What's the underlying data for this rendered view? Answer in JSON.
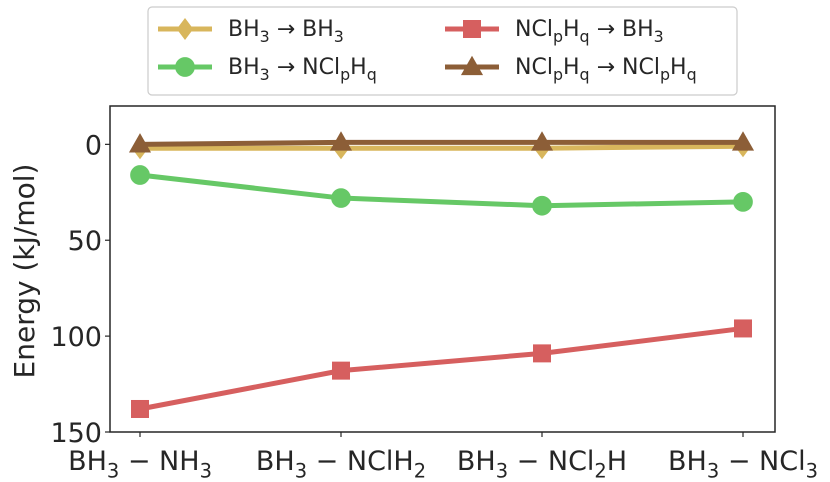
{
  "chart_data": {
    "type": "line",
    "title": "",
    "xlabel": "",
    "ylabel": "Energy (kJ/mol)",
    "ylim": [
      0,
      150
    ],
    "yticks": [
      0,
      50,
      100,
      150
    ],
    "y_inverted": true,
    "grid": false,
    "legend_position": "top-center",
    "categories": [
      {
        "base": "BH",
        "segments": [
          [
            "3",
            "sub"
          ],
          [
            " − NH",
            ""
          ],
          [
            "3",
            "sub"
          ]
        ]
      },
      {
        "base": "BH",
        "segments": [
          [
            "3",
            "sub"
          ],
          [
            " − NClH",
            ""
          ],
          [
            "2",
            "sub"
          ]
        ]
      },
      {
        "base": "BH",
        "segments": [
          [
            "3",
            "sub"
          ],
          [
            " − NCl",
            ""
          ],
          [
            "2",
            "sub"
          ],
          [
            "H",
            ""
          ]
        ]
      },
      {
        "base": "BH",
        "segments": [
          [
            "3",
            "sub"
          ],
          [
            " − NCl",
            ""
          ],
          [
            "3",
            "sub"
          ]
        ]
      }
    ],
    "category_text": [
      "BH3 − NH3",
      "BH3 − NClH2",
      "BH3 − NCl2H",
      "BH3 − NCl3"
    ],
    "series": [
      {
        "name": "BH3 → BH3",
        "label_parts": [
          [
            "BH",
            ""
          ],
          [
            "3",
            "sub"
          ],
          [
            " → BH",
            ""
          ],
          [
            "3",
            "sub"
          ]
        ],
        "marker": "diamond",
        "color": "#d8b65c",
        "values": [
          2,
          2,
          2,
          1
        ]
      },
      {
        "name": "BH3 → NClpHq",
        "label_parts": [
          [
            "BH",
            ""
          ],
          [
            "3",
            "sub"
          ],
          [
            " → NCl",
            ""
          ],
          [
            "p",
            "sub"
          ],
          [
            "H",
            ""
          ],
          [
            "q",
            "sub"
          ]
        ],
        "marker": "circle",
        "color": "#66c866",
        "values": [
          16,
          28,
          32,
          30
        ]
      },
      {
        "name": "NClpHq → BH3",
        "label_parts": [
          [
            "NCl",
            ""
          ],
          [
            "p",
            "sub"
          ],
          [
            "H",
            ""
          ],
          [
            "q",
            "sub"
          ],
          [
            " → BH",
            ""
          ],
          [
            "3",
            "sub"
          ]
        ],
        "marker": "square",
        "color": "#d65f5f",
        "values": [
          138,
          118,
          109,
          96
        ]
      },
      {
        "name": "NClpHq → NClpHq",
        "label_parts": [
          [
            "NCl",
            ""
          ],
          [
            "p",
            "sub"
          ],
          [
            "H",
            ""
          ],
          [
            "q",
            "sub"
          ],
          [
            " → NCl",
            ""
          ],
          [
            "p",
            "sub"
          ],
          [
            "H",
            ""
          ],
          [
            "q",
            "sub"
          ]
        ],
        "marker": "triangle",
        "color": "#8c5e37",
        "values": [
          0,
          -1,
          -1,
          -1
        ]
      }
    ]
  }
}
